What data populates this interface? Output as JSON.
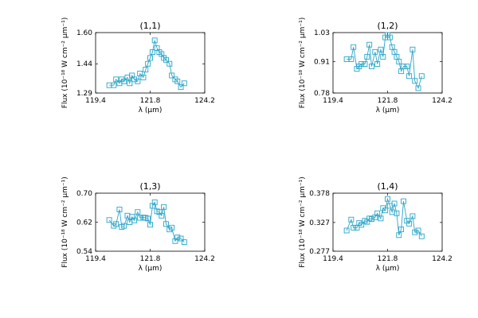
{
  "chart_data": [
    {
      "type": "line",
      "title": "(1,1)",
      "xlabel": "λ (μm)",
      "ylabel": "Flux (10⁻¹⁸ W cm⁻² μm⁻¹)",
      "xlim": [
        119.4,
        124.2
      ],
      "ylim": [
        1.29,
        1.6
      ],
      "xticks": [
        "119.4",
        "121.8",
        "124.2"
      ],
      "yticks": [
        "1.29",
        "1.44",
        "1.60"
      ],
      "x": [
        120.0,
        120.2,
        120.3,
        120.45,
        120.55,
        120.65,
        120.8,
        120.9,
        121.0,
        121.1,
        121.25,
        121.35,
        121.5,
        121.6,
        121.7,
        121.8,
        121.9,
        122.0,
        122.1,
        122.2,
        122.3,
        122.4,
        122.5,
        122.65,
        122.75,
        122.9,
        123.0,
        123.15,
        123.3
      ],
      "y": [
        1.33,
        1.33,
        1.36,
        1.34,
        1.36,
        1.35,
        1.37,
        1.34,
        1.38,
        1.36,
        1.35,
        1.39,
        1.37,
        1.41,
        1.44,
        1.47,
        1.5,
        1.56,
        1.52,
        1.5,
        1.49,
        1.47,
        1.46,
        1.44,
        1.38,
        1.36,
        1.35,
        1.32,
        1.34
      ],
      "color": "#2aa5c8",
      "marker": "square"
    },
    {
      "type": "line",
      "title": "(1,2)",
      "xlabel": "λ (μm)",
      "ylabel": "Flux (10⁻¹⁸ W cm⁻² μm⁻¹)",
      "xlim": [
        119.4,
        124.2
      ],
      "ylim": [
        0.78,
        1.03
      ],
      "xticks": [
        "119.4",
        "121.8",
        "124.2"
      ],
      "yticks": [
        "0.78",
        "0.91",
        "1.03"
      ],
      "x": [
        120.0,
        120.2,
        120.3,
        120.45,
        120.55,
        120.65,
        120.8,
        120.9,
        121.0,
        121.1,
        121.25,
        121.35,
        121.5,
        121.6,
        121.7,
        121.8,
        121.9,
        122.0,
        122.1,
        122.2,
        122.3,
        122.4,
        122.5,
        122.65,
        122.75,
        122.9,
        123.0,
        123.15,
        123.3
      ],
      "y": [
        0.92,
        0.92,
        0.97,
        0.88,
        0.89,
        0.9,
        0.9,
        0.93,
        0.98,
        0.89,
        0.95,
        0.9,
        0.96,
        0.93,
        1.01,
        1.02,
        1.01,
        0.97,
        0.95,
        0.93,
        0.91,
        0.87,
        0.89,
        0.89,
        0.85,
        0.96,
        0.83,
        0.8,
        0.85
      ],
      "color": "#2aa5c8",
      "marker": "square"
    },
    {
      "type": "line",
      "title": "(1,3)",
      "xlabel": "λ (μm)",
      "ylabel": "Flux (10⁻¹⁸ W cm⁻² μm⁻¹)",
      "xlim": [
        119.4,
        124.2
      ],
      "ylim": [
        0.54,
        0.7
      ],
      "xticks": [
        "119.4",
        "121.8",
        "124.2"
      ],
      "yticks": [
        "0.54",
        "0.62",
        "0.70"
      ],
      "x": [
        120.0,
        120.2,
        120.3,
        120.45,
        120.55,
        120.65,
        120.8,
        120.9,
        121.0,
        121.1,
        121.25,
        121.35,
        121.5,
        121.6,
        121.7,
        121.8,
        121.9,
        122.0,
        122.1,
        122.2,
        122.3,
        122.4,
        122.5,
        122.65,
        122.75,
        122.9,
        123.0,
        123.15,
        123.3
      ],
      "y": [
        0.626,
        0.61,
        0.615,
        0.655,
        0.607,
        0.61,
        0.638,
        0.62,
        0.635,
        0.625,
        0.648,
        0.632,
        0.633,
        0.632,
        0.63,
        0.613,
        0.665,
        0.675,
        0.65,
        0.648,
        0.638,
        0.662,
        0.615,
        0.6,
        0.605,
        0.568,
        0.578,
        0.575,
        0.565
      ],
      "color": "#2aa5c8",
      "marker": "square"
    },
    {
      "type": "line",
      "title": "(1,4)",
      "xlabel": "λ (μm)",
      "ylabel": "Flux (10⁻¹⁸ W cm⁻² μm⁻¹)",
      "xlim": [
        119.4,
        124.2
      ],
      "ylim": [
        0.277,
        0.378
      ],
      "xticks": [
        "119.4",
        "121.8",
        "124.2"
      ],
      "yticks": [
        "0.277",
        "0.327",
        "0.378"
      ],
      "x": [
        120.0,
        120.2,
        120.3,
        120.45,
        120.55,
        120.65,
        120.8,
        120.9,
        121.0,
        121.1,
        121.25,
        121.35,
        121.5,
        121.6,
        121.7,
        121.8,
        121.9,
        122.0,
        122.1,
        122.2,
        122.3,
        122.4,
        122.5,
        122.65,
        122.75,
        122.9,
        123.0,
        123.15,
        123.3
      ],
      "y": [
        0.313,
        0.332,
        0.318,
        0.318,
        0.326,
        0.323,
        0.33,
        0.328,
        0.334,
        0.333,
        0.336,
        0.343,
        0.334,
        0.352,
        0.348,
        0.368,
        0.356,
        0.345,
        0.36,
        0.343,
        0.305,
        0.315,
        0.364,
        0.33,
        0.325,
        0.338,
        0.31,
        0.313,
        0.303
      ],
      "color": "#2aa5c8",
      "marker": "square"
    }
  ]
}
